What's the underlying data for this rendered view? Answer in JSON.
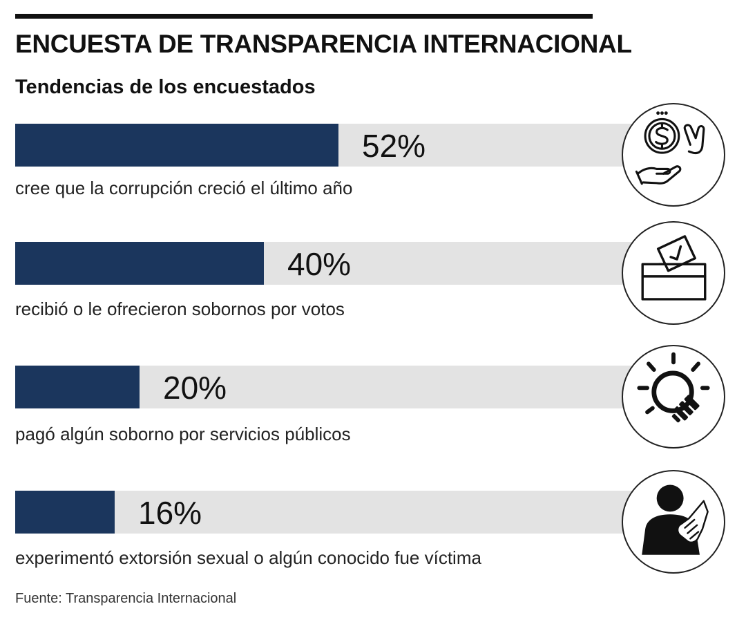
{
  "title": "ENCUESTA DE TRANSPARENCIA INTERNACIONAL",
  "subtitle": "Tendencias de los encuestados",
  "source": "Fuente: Transparencia Internacional",
  "colors": {
    "bar": "#1b365d",
    "track": "#e3e3e3",
    "text": "#111111"
  },
  "chart_data": {
    "type": "bar",
    "orientation": "horizontal",
    "title": "ENCUESTA DE TRANSPARENCIA INTERNACIONAL",
    "subtitle": "Tendencias de los encuestados",
    "unit": "%",
    "xlim": [
      0,
      100
    ],
    "grid": false,
    "categories": [
      "cree que la corrupción creció el último año",
      "recibió o le ofrecieron sobornos por votos",
      "pagó algún soborno por servicios públicos",
      "experimentó extorsión sexual o algún conocido fue víctima"
    ],
    "values": [
      52,
      40,
      20,
      16
    ],
    "value_labels": [
      "52%",
      "40%",
      "20%",
      "16%"
    ],
    "icons": [
      "money-bribe-icon",
      "ballot-box-icon",
      "light-bulb-icon",
      "harassment-icon"
    ]
  }
}
